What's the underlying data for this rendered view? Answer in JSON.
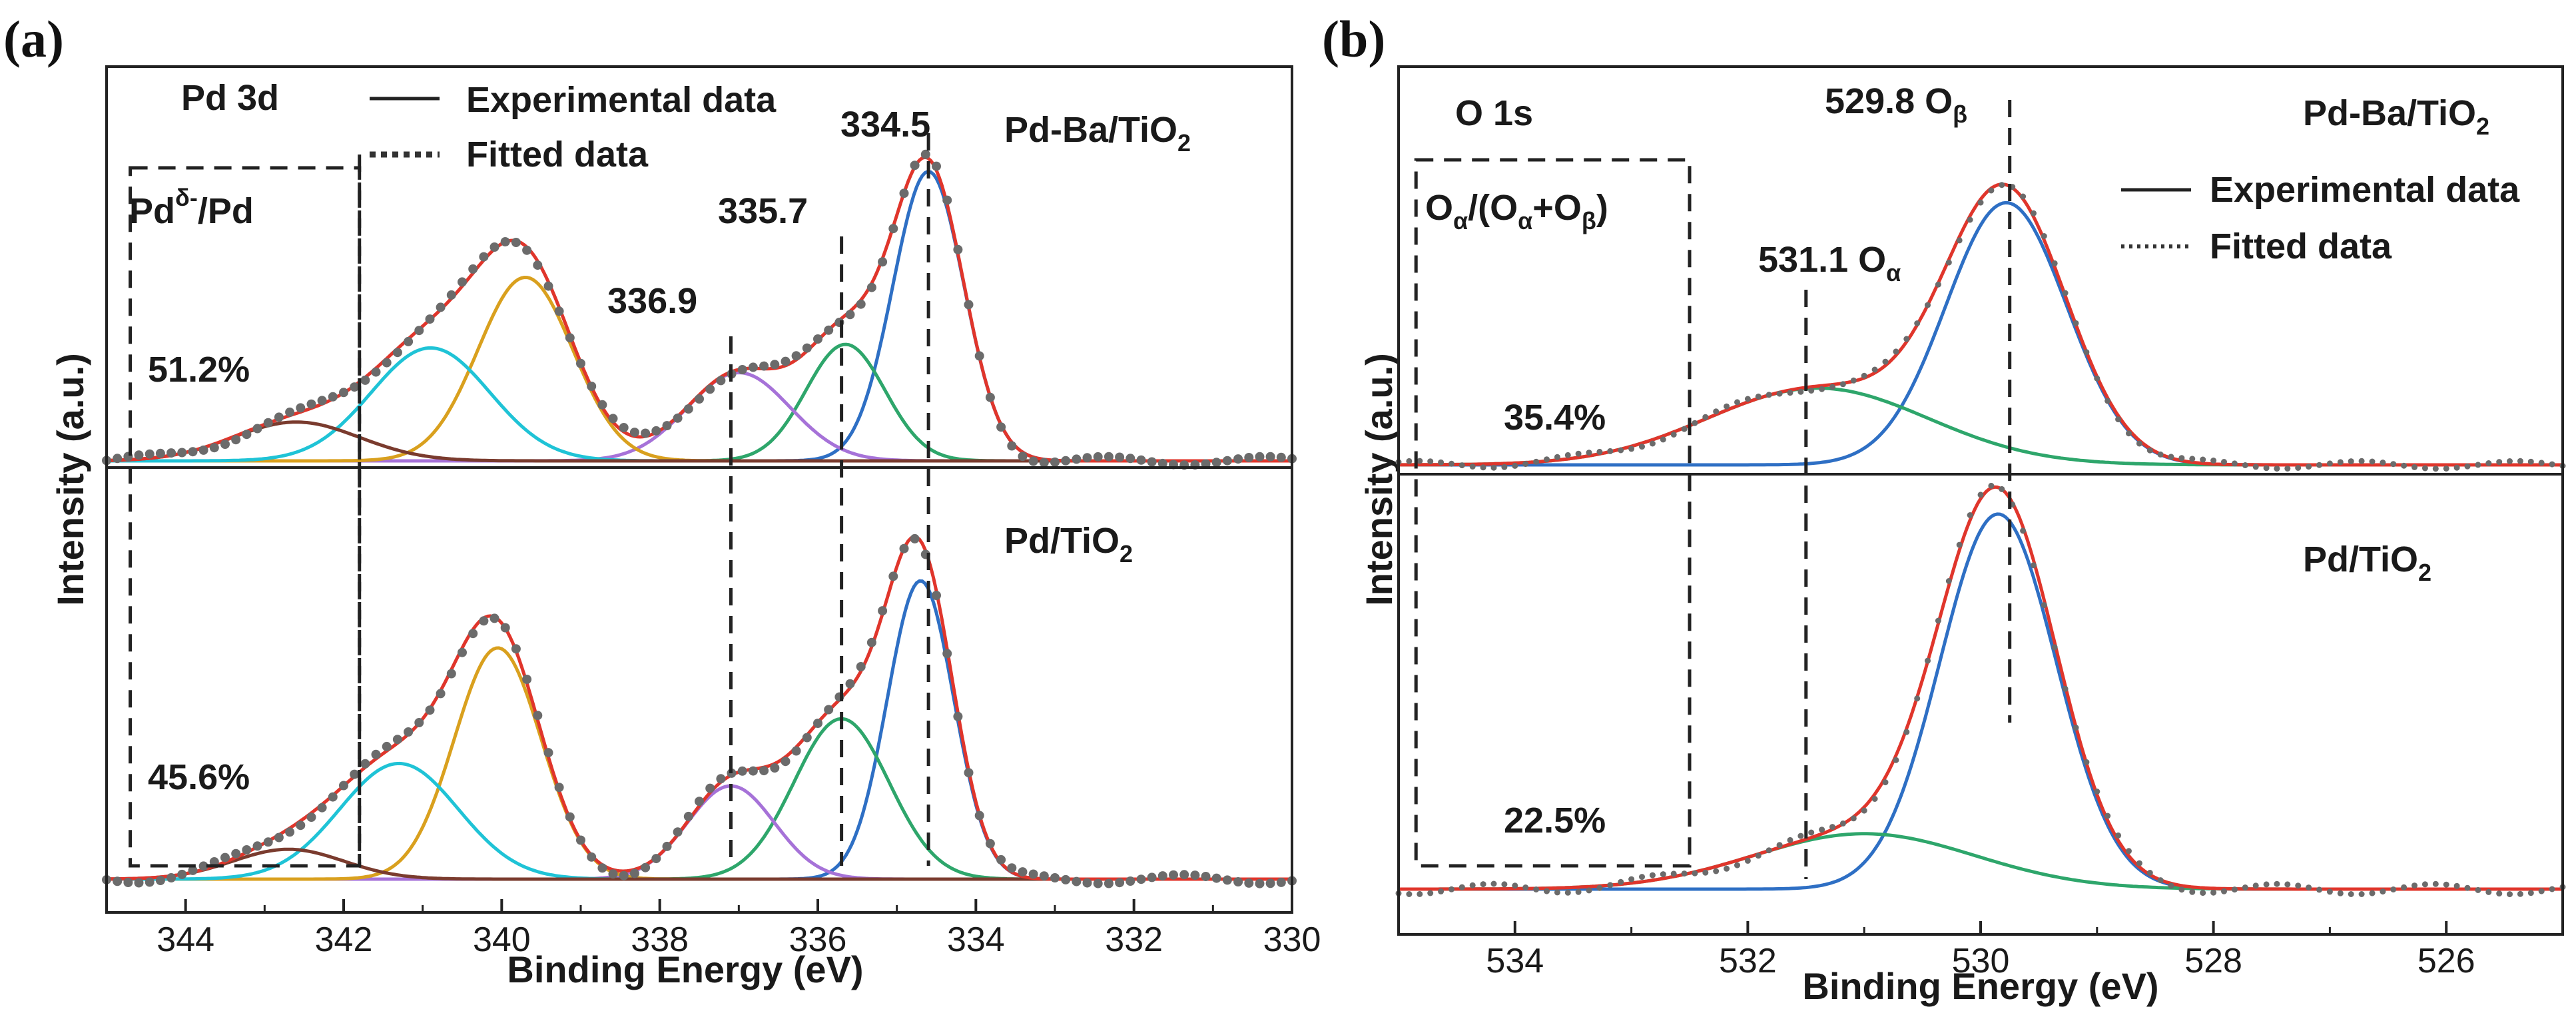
{
  "chart_data": [
    {
      "panel": "(a)",
      "type": "line",
      "element": "Pd 3d",
      "xlabel": "Binding Energy (eV)",
      "ylabel": "Intensity (a.u.)",
      "xlim": [
        345,
        330
      ],
      "xticks": [
        "344",
        "342",
        "340",
        "338",
        "336",
        "334",
        "332",
        "330"
      ],
      "legend": {
        "experimental": "Experimental data",
        "fitted": "Fitted data"
      },
      "ratio_label": {
        "main": "Pd",
        "sup": "δ-",
        "tail": "/Pd"
      },
      "peak_lines": [
        334.6,
        335.7,
        337.1,
        341.8
      ],
      "box": {
        "x_from": 344.7,
        "x_to": 341.8
      },
      "subplots": [
        {
          "sample": "Pd-Ba/TiO",
          "sub": "2",
          "percent": "51.2%",
          "peak_labels": [
            "334.5",
            "335.7",
            "336.9"
          ],
          "components": [
            {
              "name": "Pd 3d5/2 Pd0",
              "color": "#2e6fc4",
              "center": 334.6,
              "height": 0.82,
              "width": 0.45
            },
            {
              "name": "Pd 3d5/2 Pd2+",
              "color": "#2ea66b",
              "center": 335.65,
              "height": 0.33,
              "width": 0.5
            },
            {
              "name": "Pd 3d5/2 Pd4+",
              "color": "#a672d8",
              "center": 337.0,
              "height": 0.25,
              "width": 0.65
            },
            {
              "name": "Pd 3d3/2 Pd0",
              "color": "#d9a01e",
              "center": 339.7,
              "height": 0.52,
              "width": 0.6
            },
            {
              "name": "Pd 3d3/2 Pd2+",
              "color": "#1fc3d6",
              "center": 340.9,
              "height": 0.32,
              "width": 0.75
            },
            {
              "name": "satellite",
              "color": "#7a3b2e",
              "center": 342.6,
              "height": 0.11,
              "width": 0.8
            }
          ]
        },
        {
          "sample": "Pd/TiO",
          "sub": "2",
          "percent": "45.6%",
          "peak_labels": [],
          "components": [
            {
              "name": "Pd 3d5/2 Pd0",
              "color": "#2e6fc4",
              "center": 334.7,
              "height": 0.8,
              "width": 0.42
            },
            {
              "name": "Pd 3d5/2 Pd2+",
              "color": "#2ea66b",
              "center": 335.7,
              "height": 0.43,
              "width": 0.6
            },
            {
              "name": "Pd 3d5/2 Pd4+",
              "color": "#a672d8",
              "center": 337.1,
              "height": 0.25,
              "width": 0.55
            },
            {
              "name": "Pd 3d3/2 Pd0",
              "color": "#d9a01e",
              "center": 340.05,
              "height": 0.62,
              "width": 0.55
            },
            {
              "name": "Pd 3d3/2 Pd2+",
              "color": "#1fc3d6",
              "center": 341.3,
              "height": 0.31,
              "width": 0.75
            },
            {
              "name": "satellite",
              "color": "#7a3b2e",
              "center": 342.7,
              "height": 0.08,
              "width": 0.7
            }
          ]
        }
      ]
    },
    {
      "panel": "(b)",
      "type": "line",
      "element": "O 1s",
      "xlabel": "Binding Energy (eV)",
      "ylabel": "Intensity (a.u.)",
      "xlim": [
        535,
        525
      ],
      "xticks": [
        "534",
        "532",
        "530",
        "528",
        "526"
      ],
      "legend": {
        "experimental": "Experimental data",
        "fitted": "Fitted data"
      },
      "ratio_label": {
        "a": "O",
        "a_sub": "α",
        "b": "/(O",
        "c_sub": "α",
        "d": "+O",
        "e_sub": "β",
        "f": ")"
      },
      "peak_labels": {
        "beta": "529.8 O",
        "beta_sub": "β",
        "alpha": "531.1 O",
        "alpha_sub": "α"
      },
      "peak_lines": [
        529.75,
        531.5
      ],
      "box": {
        "x_from": 534.85,
        "x_to": 532.5
      },
      "subplots": [
        {
          "sample": "Pd-Ba/TiO",
          "sub": "2",
          "percent": "35.4%",
          "components": [
            {
              "name": "O lattice (Oβ)",
              "color": "#2e6fc4",
              "center": 529.78,
              "height": 0.82,
              "width": 0.52
            },
            {
              "name": "O adsorbed (Oα)",
              "color": "#2ea66b",
              "center": 531.4,
              "height": 0.24,
              "width": 0.95
            }
          ]
        },
        {
          "sample": "Pd/TiO",
          "sub": "2",
          "percent": "22.5%",
          "components": [
            {
              "name": "O lattice (Oβ)",
              "color": "#2e6fc4",
              "center": 529.85,
              "height": 0.88,
              "width": 0.5
            },
            {
              "name": "O adsorbed (Oα)",
              "color": "#2ea66b",
              "center": 531.0,
              "height": 0.13,
              "width": 0.95
            }
          ]
        }
      ]
    }
  ]
}
